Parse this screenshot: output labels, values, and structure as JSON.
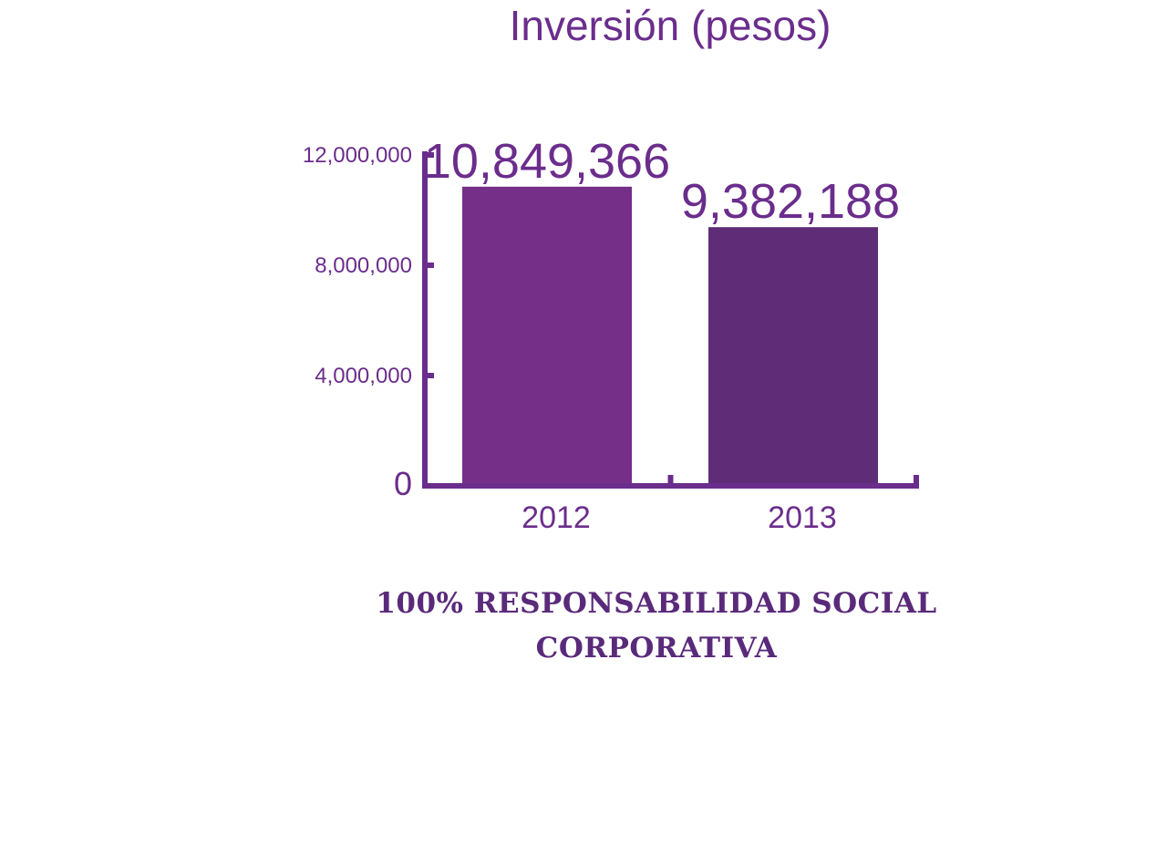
{
  "chart_data": {
    "type": "bar",
    "title": "Inversión (pesos)",
    "categories": [
      "2012",
      "2013"
    ],
    "values": [
      10849366,
      9382188
    ],
    "value_labels": [
      "10,849,366",
      "9,382,188"
    ],
    "ylim": [
      0,
      12000000
    ],
    "yticks": [
      0,
      4000000,
      8000000,
      12000000
    ],
    "ytick_labels": [
      "0",
      "4,000,000",
      "8,000,000",
      "12,000,000"
    ],
    "bar_colors": [
      "#762f88",
      "#5f2d78"
    ],
    "axis_color": "#6b2d8c",
    "grid": false
  },
  "footer": {
    "line1": "100% RESPONSABILIDAD SOCIAL",
    "line2": "CORPORATIVA"
  }
}
